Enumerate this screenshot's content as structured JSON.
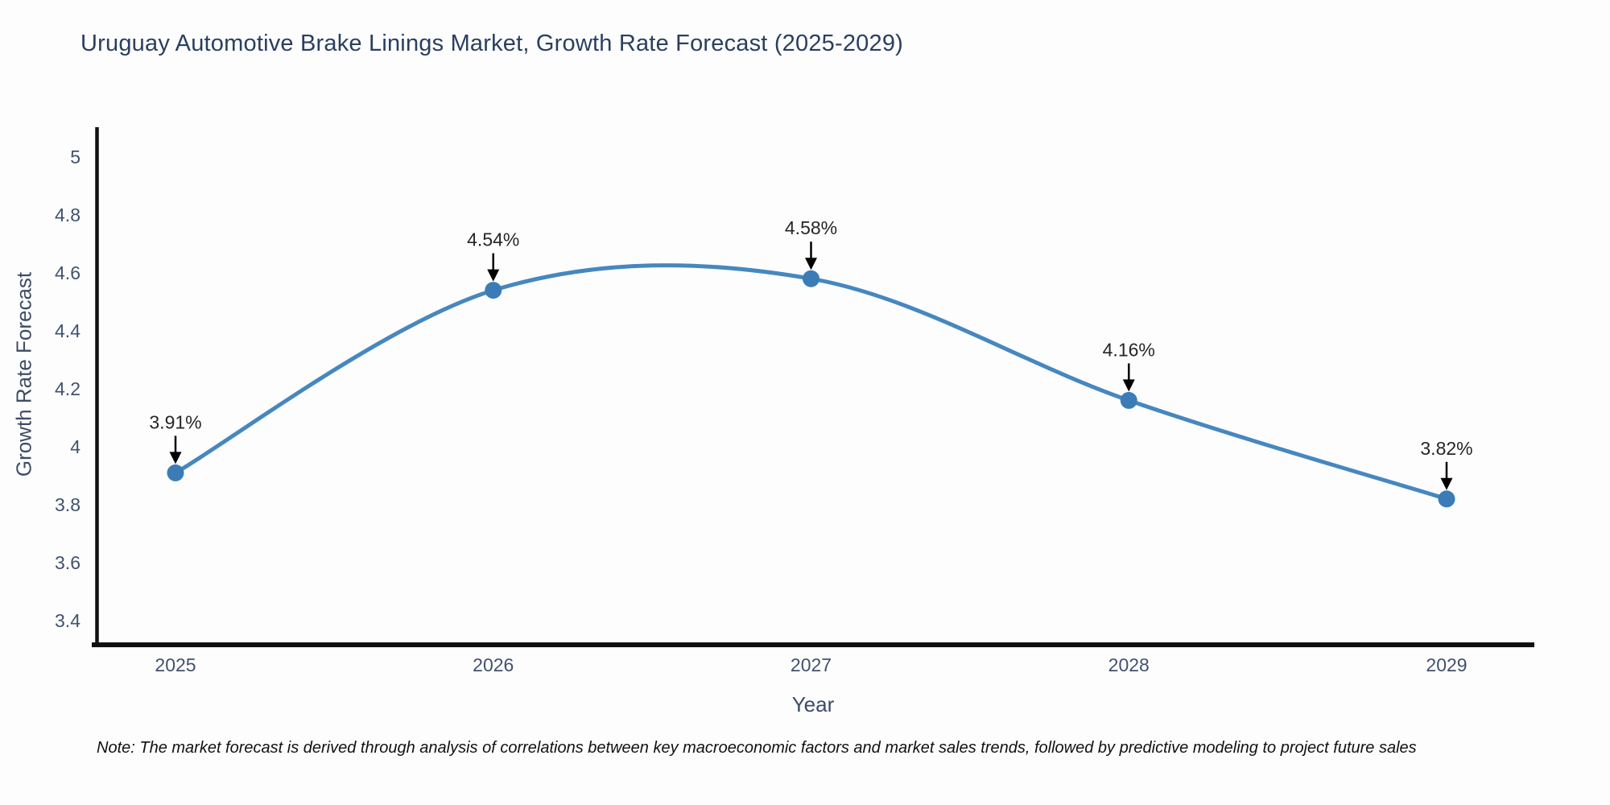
{
  "title": "Uruguay Automotive Brake Linings Market, Growth Rate Forecast (2025-2029)",
  "note": "Note: The market forecast is derived through analysis of correlations between key macroeconomic factors and market sales trends, followed by predictive modeling to project future sales",
  "colors": {
    "line": "#4687bf",
    "marker": "#3b7cb8",
    "spine": "#111111",
    "title": "#2a3f5f",
    "tick": "#42516d",
    "axis_title": "#3e4c66",
    "annotation_text": "#262626",
    "arrow": "#000000",
    "background": "#fdfdfe"
  },
  "chart_data": {
    "type": "line",
    "line_shape": "spline",
    "x": [
      "2025",
      "2026",
      "2027",
      "2028",
      "2029"
    ],
    "values": [
      3.91,
      4.54,
      4.58,
      4.16,
      3.82
    ],
    "point_labels": [
      "3.91%",
      "4.54%",
      "4.58%",
      "4.16%",
      "3.82%"
    ],
    "title": "Uruguay Automotive Brake Linings Market, Growth Rate Forecast (2025-2029)",
    "xlabel": "Year",
    "ylabel": "Growth Rate Forecast",
    "ylim": [
      3.3,
      5.1
    ],
    "yticks": [
      "3.4",
      "3.6",
      "3.8",
      "4",
      "4.2",
      "4.4",
      "4.6",
      "4.8",
      "5"
    ],
    "ytick_values": [
      3.4,
      3.6,
      3.8,
      4,
      4.2,
      4.4,
      4.6,
      4.8,
      5
    ],
    "grid": false,
    "legend": "none",
    "markers": true,
    "annotations": "value labels with downward arrows above each point"
  }
}
